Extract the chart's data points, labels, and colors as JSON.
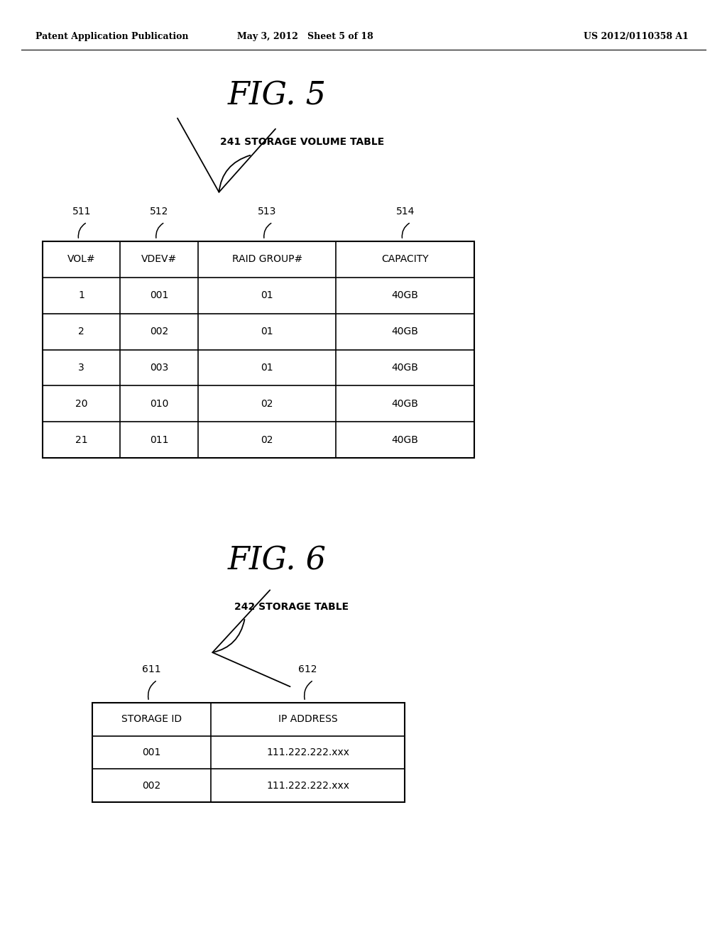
{
  "page_header_left": "Patent Application Publication",
  "page_header_middle": "May 3, 2012   Sheet 5 of 18",
  "page_header_right": "US 2012/0110358 A1",
  "fig5_title": "FIG. 5",
  "fig5_label": "241 STORAGE VOLUME TABLE",
  "fig5_headers": [
    "VOL#",
    "VDEV#",
    "RAID GROUP#",
    "CAPACITY"
  ],
  "fig5_col_labels": [
    "511",
    "512",
    "513",
    "514"
  ],
  "fig5_data": [
    [
      "1",
      "001",
      "01",
      "40GB"
    ],
    [
      "2",
      "002",
      "01",
      "40GB"
    ],
    [
      "3",
      "003",
      "01",
      "40GB"
    ],
    [
      "20",
      "010",
      "02",
      "40GB"
    ],
    [
      "21",
      "011",
      "02",
      "40GB"
    ]
  ],
  "fig6_title": "FIG. 6",
  "fig6_label": "242 STORAGE TABLE",
  "fig6_col_labels": [
    "611",
    "612"
  ],
  "fig6_headers": [
    "STORAGE ID",
    "IP ADDRESS"
  ],
  "fig6_data": [
    [
      "001",
      "111.222.222.xxx"
    ],
    [
      "002",
      "111.222.222.xxx"
    ]
  ],
  "background_color": "#ffffff",
  "text_color": "#000000",
  "line_color": "#000000"
}
